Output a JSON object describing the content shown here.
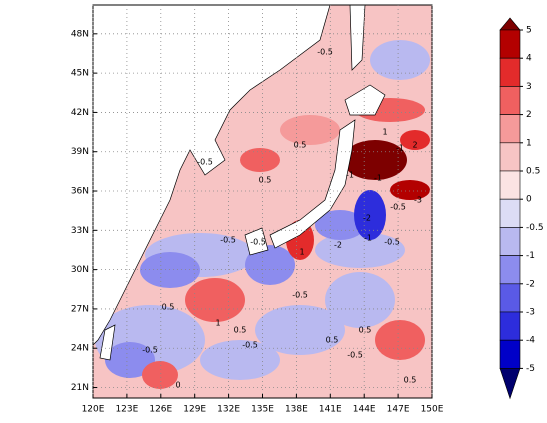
{
  "map": {
    "xlim": [
      120,
      150
    ],
    "ylim": [
      20.2,
      50.2
    ],
    "xticks": [
      {
        "value": 120,
        "label": "120E"
      },
      {
        "value": 123,
        "label": "123E"
      },
      {
        "value": 126,
        "label": "126E"
      },
      {
        "value": 129,
        "label": "129E"
      },
      {
        "value": 132,
        "label": "132E"
      },
      {
        "value": 135,
        "label": "135E"
      },
      {
        "value": 138,
        "label": "138E"
      },
      {
        "value": 141,
        "label": "141E"
      },
      {
        "value": 144,
        "label": "144E"
      },
      {
        "value": 147,
        "label": "147E"
      },
      {
        "value": 150,
        "label": "150E"
      }
    ],
    "yticks": [
      {
        "value": 21,
        "label": "21N"
      },
      {
        "value": 24,
        "label": "24N"
      },
      {
        "value": 27,
        "label": "27N"
      },
      {
        "value": 30,
        "label": "30N"
      },
      {
        "value": 33,
        "label": "33N"
      },
      {
        "value": 36,
        "label": "36N"
      },
      {
        "value": 39,
        "label": "39N"
      },
      {
        "value": 42,
        "label": "42N"
      },
      {
        "value": 45,
        "label": "45N"
      },
      {
        "value": 48,
        "label": "48N"
      }
    ],
    "grid": true,
    "contour_labels": [
      "-0.5",
      "0.5",
      "-0.5",
      "0.5",
      "1",
      "-1",
      "2",
      "-1",
      "-1",
      "-3",
      "-2",
      "-0.5",
      "-2",
      "-1",
      "-0.5",
      "1",
      "-0.5",
      "-0.5",
      "1",
      "0.5",
      "-0.5",
      "-0.5",
      "0.5",
      "-0.5",
      "0.5",
      "0.5",
      "-0.5",
      "0.5",
      "0"
    ]
  },
  "colorbar": {
    "levels": [
      5,
      4,
      3,
      2,
      1,
      0.5,
      0,
      -0.5,
      -1,
      -2,
      -3,
      -4,
      -5
    ],
    "colors": [
      "#7d0000",
      "#b30000",
      "#e32b2b",
      "#f06060",
      "#f59a9a",
      "#f7c4c4",
      "#fbe3e3",
      "#dcdcf5",
      "#b9b9f0",
      "#8c8cee",
      "#5a5ae6",
      "#2d2ddc",
      "#0000c8",
      "#00006e"
    ]
  }
}
